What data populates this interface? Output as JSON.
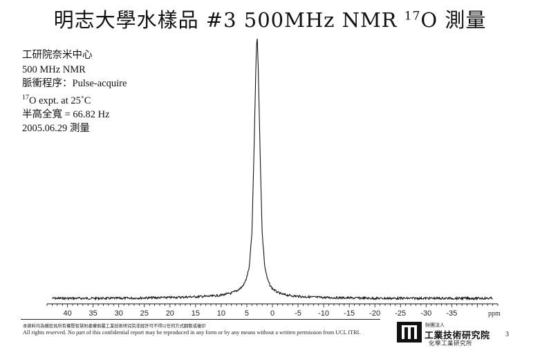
{
  "slide": {
    "title_main": "明志大學水樣品 #3 500MHz NMR ",
    "title_sup": "17",
    "title_tail": "O 測量",
    "page_number": "3"
  },
  "info": {
    "line1": "工研院奈米中心",
    "line2": "500 MHz NMR",
    "line3": "脈衝程序：Pulse-acquire",
    "line4_sup": "17",
    "line4_text": "O expt. at 25˚C",
    "line5": "半高全寬 = 66.82 Hz",
    "line6": "2005.06.29 測量"
  },
  "footer": {
    "notice_cn": "本資料均為機密具所有權暨智慧財產權俱屬工業技術研究院非經許可不得以任何方式翻製或複印",
    "notice_en": "All rights reserved.  No part of this confidential report may be reproduced in any form or  by any means without a written permission from UCL ITRI.",
    "org_prefix": "財團法人",
    "org_name": "工業技術研究院",
    "org_sub": "化學工業研究所",
    "logo_icon": "itri-logo-icon"
  },
  "chart_data": {
    "type": "line",
    "title": "",
    "xlabel": "ppm",
    "ylabel": "",
    "x_reversed": true,
    "xlim": [
      44,
      -44
    ],
    "ylim": [
      0,
      1
    ],
    "x_ticks": [
      40,
      35,
      30,
      25,
      20,
      15,
      10,
      5,
      0,
      -5,
      -10,
      -15,
      -20,
      -25,
      -30,
      -35
    ],
    "x_tick_labels": [
      "40",
      "35",
      "30",
      "25",
      "20",
      "15",
      "10",
      "5",
      "0",
      "-5",
      "-10",
      "-15",
      "-20",
      "-25",
      "-30",
      "-35"
    ],
    "grid": false,
    "series": [
      {
        "x": [
          43,
          30,
          20,
          15,
          12,
          10,
          8,
          7,
          6,
          5.5,
          5,
          4.5,
          4,
          3.6,
          3.2,
          3.0,
          2.8,
          2.4,
          2.0,
          1.5,
          1.0,
          0.5,
          0,
          -1,
          -2,
          -4,
          -6,
          -10,
          -20,
          -30,
          -43
        ],
        "y": [
          0.0,
          0.0,
          0.003,
          0.006,
          0.008,
          0.012,
          0.02,
          0.028,
          0.042,
          0.055,
          0.08,
          0.12,
          0.25,
          0.55,
          0.9,
          1.0,
          0.9,
          0.55,
          0.25,
          0.12,
          0.075,
          0.05,
          0.037,
          0.022,
          0.015,
          0.009,
          0.006,
          0.003,
          0.0,
          0.0,
          0.0
        ]
      }
    ],
    "line_color": "#111111"
  }
}
